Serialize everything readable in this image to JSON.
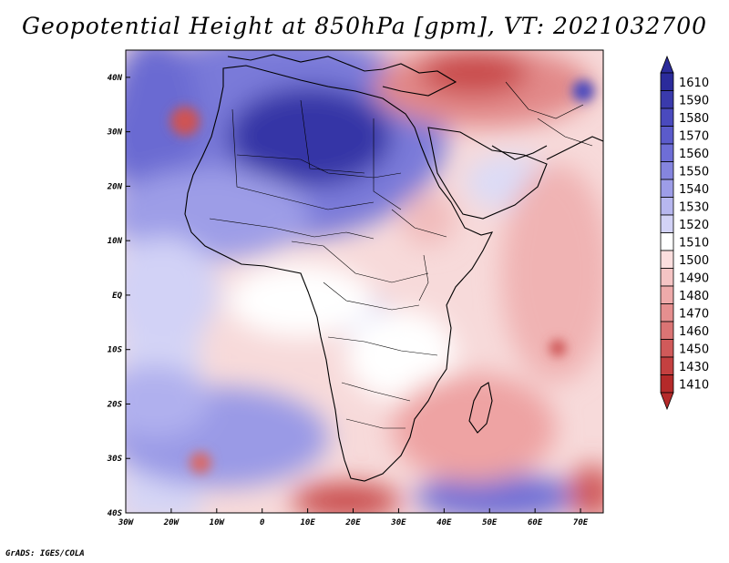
{
  "title": "Geopotential Height at 850hPa [gpm], VT: 2021032700",
  "credit": "GrADS: IGES/COLA",
  "map": {
    "lat_labels": [
      "40N",
      "30N",
      "20N",
      "10N",
      "EQ",
      "10S",
      "20S",
      "30S",
      "40S"
    ],
    "lon_labels": [
      "30W",
      "20W",
      "10W",
      "0",
      "10E",
      "20E",
      "30E",
      "40E",
      "50E",
      "60E",
      "70E"
    ],
    "lat_range": [
      -40,
      45
    ],
    "lon_range": [
      -30,
      75
    ]
  },
  "colorbar": {
    "levels": [
      "1610",
      "1590",
      "1580",
      "1570",
      "1560",
      "1550",
      "1540",
      "1530",
      "1520",
      "1510",
      "1500",
      "1490",
      "1480",
      "1470",
      "1460",
      "1450",
      "1430",
      "1410"
    ],
    "colors": [
      "#2b2b9b",
      "#3a3aac",
      "#4a4abe",
      "#5b5bcb",
      "#6e6ed6",
      "#8585df",
      "#9d9de7",
      "#b7b7ef",
      "#d2d2f6",
      "#ffffff",
      "#fbdede",
      "#f5c4c4",
      "#eeaaaa",
      "#e58f8f",
      "#db7474",
      "#d05a5a",
      "#c44040",
      "#b52a2a"
    ]
  }
}
